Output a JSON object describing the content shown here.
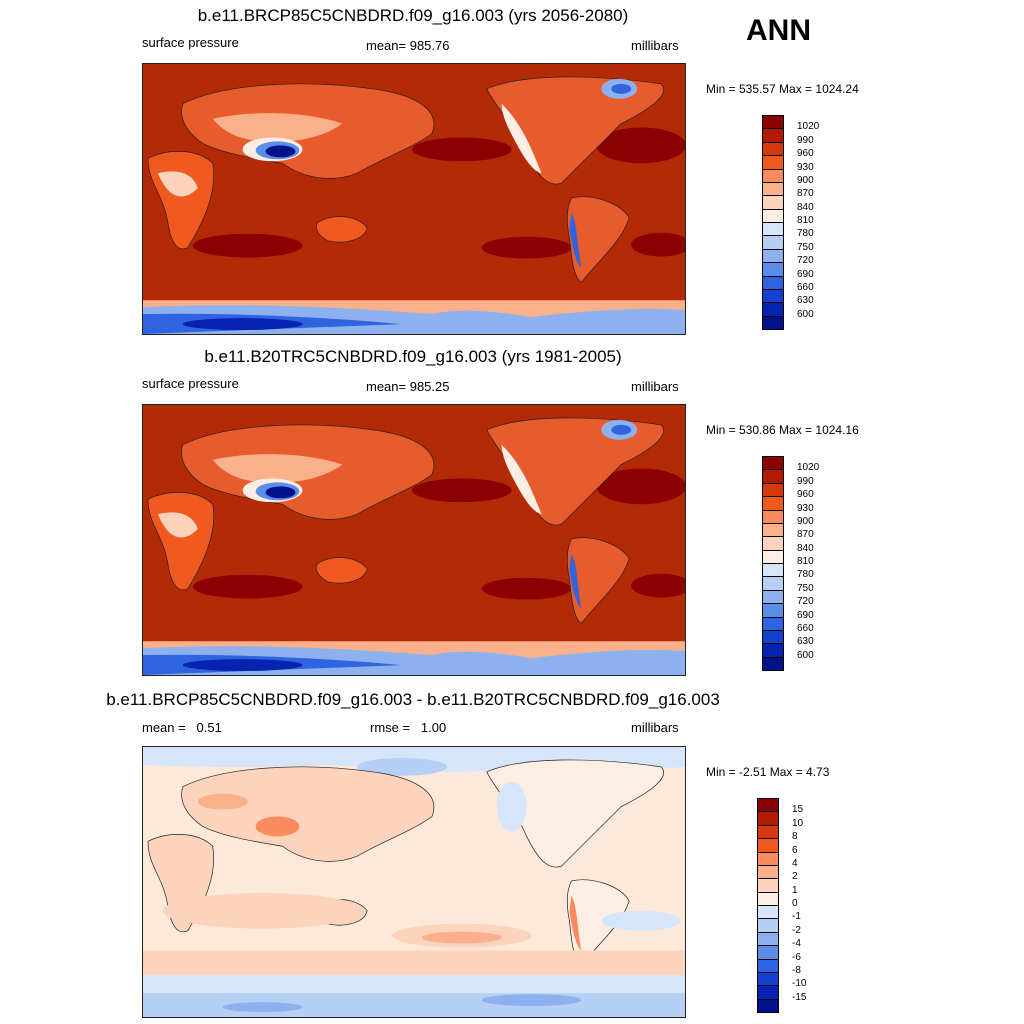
{
  "season": "ANN",
  "panels": [
    {
      "title": "b.e11.BRCP85C5CNBDRD.f09_g16.003 (yrs 2056-2080)",
      "left_label": "surface pressure",
      "center_label": "mean= 985.76",
      "right_label": "millibars",
      "minmax": "Min = 535.57 Max = 1024.24",
      "levels": [
        "1020",
        "990",
        "960",
        "930",
        "900",
        "870",
        "840",
        "810",
        "780",
        "750",
        "720",
        "690",
        "660",
        "630",
        "600"
      ],
      "colors": [
        "#8b0000",
        "#b31b00",
        "#d43a0b",
        "#f05a1f",
        "#f98b5c",
        "#fbb08c",
        "#fcd3bd",
        "#fdeee3",
        "#d6e6fa",
        "#b5cff5",
        "#8db1ee",
        "#5b8ee8",
        "#2f63e0",
        "#143fcf",
        "#0622b0",
        "#00128a"
      ],
      "ocean_color": "#b52a06"
    },
    {
      "title": "b.e11.B20TRC5CNBDRD.f09_g16.003 (yrs 1981-2005)",
      "left_label": "surface pressure",
      "center_label": "mean= 985.25",
      "right_label": "millibars",
      "minmax": "Min = 530.86 Max = 1024.16",
      "levels": [
        "1020",
        "990",
        "960",
        "930",
        "900",
        "870",
        "840",
        "810",
        "780",
        "750",
        "720",
        "690",
        "660",
        "630",
        "600"
      ],
      "colors": [
        "#8b0000",
        "#b31b00",
        "#d43a0b",
        "#f05a1f",
        "#f98b5c",
        "#fbb08c",
        "#fcd3bd",
        "#fdeee3",
        "#d6e6fa",
        "#b5cff5",
        "#8db1ee",
        "#5b8ee8",
        "#2f63e0",
        "#143fcf",
        "#0622b0",
        "#00128a"
      ],
      "ocean_color": "#b52a06"
    },
    {
      "title": "b.e11.BRCP85C5CNBDRD.f09_g16.003 - b.e11.B20TRC5CNBDRD.f09_g16.003",
      "left_label": "mean =   0.51",
      "center_label": "rmse =   1.00",
      "right_label": "millibars",
      "minmax": "Min =  -2.51 Max =   4.73",
      "levels": [
        "15",
        "10",
        "8",
        "6",
        "4",
        "2",
        "1",
        "0",
        "-1",
        "-2",
        "-4",
        "-6",
        "-8",
        "-10",
        "-15"
      ],
      "colors": [
        "#8b0000",
        "#b31b00",
        "#d43a0b",
        "#f05a1f",
        "#f98b5c",
        "#fbb08c",
        "#fcd3bd",
        "#fdeee3",
        "#d6e6fa",
        "#b5cff5",
        "#8db1ee",
        "#5b8ee8",
        "#2f63e0",
        "#143fcf",
        "#0622b0",
        "#00128a"
      ],
      "ocean_color": "#fde8d9"
    }
  ]
}
